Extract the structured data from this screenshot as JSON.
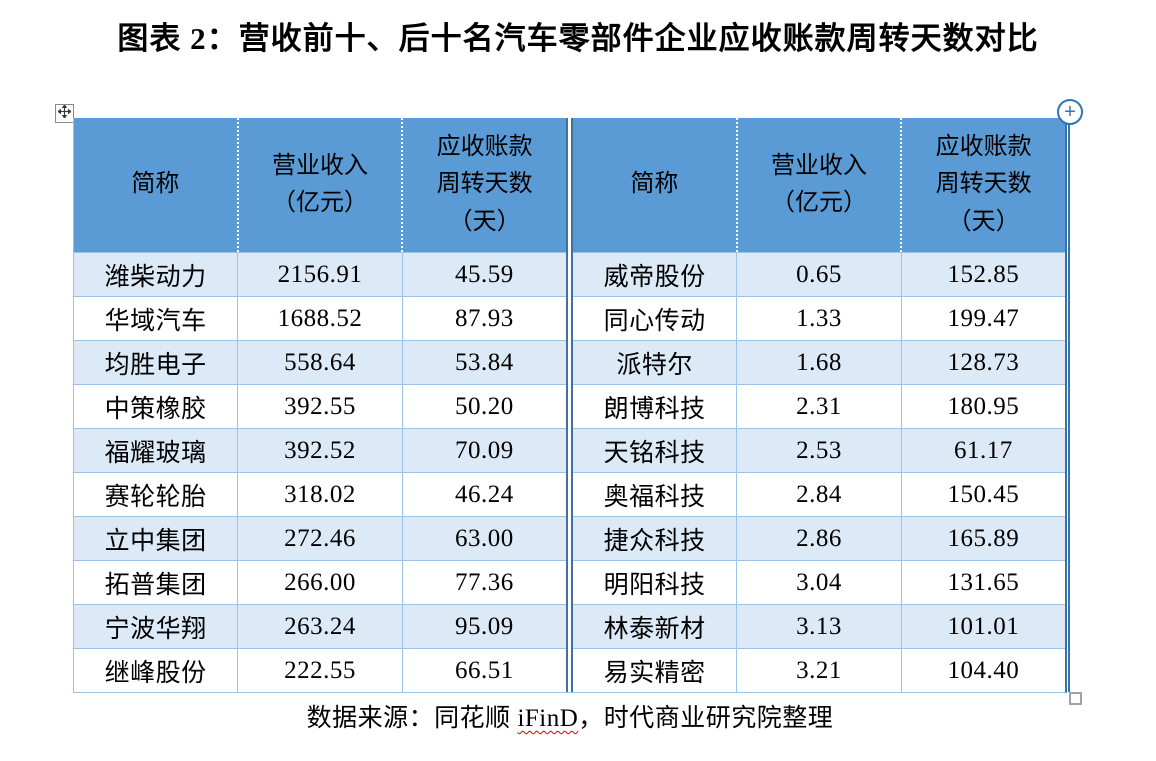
{
  "title": "图表 2：营收前十、后十名汽车零部件企业应收账款周转天数对比",
  "table": {
    "headers": [
      "简称",
      "营业收入\n（亿元）",
      "应收账款\n周转天数\n（天）"
    ]
  },
  "chart_data": {
    "type": "table",
    "title": "图表 2：营收前十、后十名汽车零部件企业应收账款周转天数对比",
    "columns": [
      "简称",
      "营业收入（亿元）",
      "应收账款周转天数（天）"
    ],
    "groups": [
      {
        "name": "营收前十",
        "rows": [
          [
            "潍柴动力",
            "2156.91",
            "45.59"
          ],
          [
            "华域汽车",
            "1688.52",
            "87.93"
          ],
          [
            "均胜电子",
            "558.64",
            "53.84"
          ],
          [
            "中策橡胶",
            "392.55",
            "50.20"
          ],
          [
            "福耀玻璃",
            "392.52",
            "70.09"
          ],
          [
            "赛轮轮胎",
            "318.02",
            "46.24"
          ],
          [
            "立中集团",
            "272.46",
            "63.00"
          ],
          [
            "拓普集团",
            "266.00",
            "77.36"
          ],
          [
            "宁波华翔",
            "263.24",
            "95.09"
          ],
          [
            "继峰股份",
            "222.55",
            "66.51"
          ]
        ]
      },
      {
        "name": "营收后十",
        "rows": [
          [
            "威帝股份",
            "0.65",
            "152.85"
          ],
          [
            "同心传动",
            "1.33",
            "199.47"
          ],
          [
            "派特尔",
            "1.68",
            "128.73"
          ],
          [
            "朗博科技",
            "2.31",
            "180.95"
          ],
          [
            "天铭科技",
            "2.53",
            "61.17"
          ],
          [
            "奥福科技",
            "2.84",
            "150.45"
          ],
          [
            "捷众科技",
            "2.86",
            "165.89"
          ],
          [
            "明阳科技",
            "3.04",
            "131.65"
          ],
          [
            "林泰新材",
            "3.13",
            "101.01"
          ],
          [
            "易实精密",
            "3.21",
            "104.40"
          ]
        ]
      }
    ]
  },
  "source": {
    "prefix": "数据来源：同花顺 ",
    "ifind": "iFinD",
    "suffix": "，时代商业研究院整理"
  },
  "controls": {
    "insert_label": "+"
  },
  "colors": {
    "header_bg": "#5b9bd5",
    "band_bg": "#dce9f6",
    "grid_line": "#9cc3e5",
    "dark_border": "#41719c",
    "insert_accent": "#2e75b6",
    "spellcheck_underline": "#dd0000"
  }
}
